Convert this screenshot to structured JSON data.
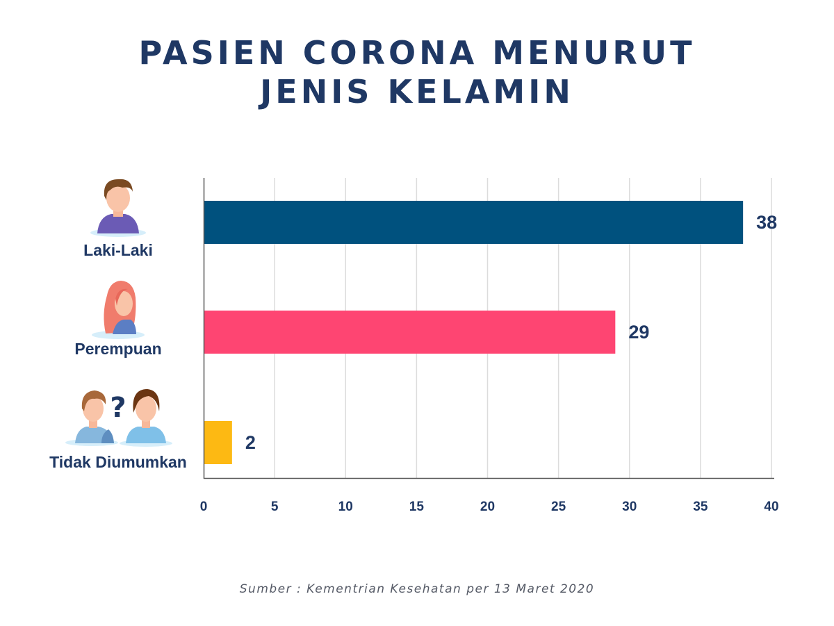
{
  "colors": {
    "title": "#1f3864",
    "laki": "#00517e",
    "perempuan": "#fe4572",
    "tidak": "#fdb913",
    "grid": "#dcdcdc",
    "axis": "#555555"
  },
  "chart_data": {
    "type": "bar",
    "orientation": "horizontal",
    "title": [
      "PASIEN CORONA MENURUT",
      "JENIS KELAMIN"
    ],
    "categories": [
      "Laki-Laki",
      "Perempuan",
      "Tidak Diumumkan"
    ],
    "values": [
      38,
      29,
      2
    ],
    "data_labels": [
      "38",
      "29",
      "2"
    ],
    "bar_colors": [
      "#00517e",
      "#fe4572",
      "#fdb913"
    ],
    "xlim": [
      0,
      40
    ],
    "x_ticks": [
      "0",
      "5",
      "10",
      "15",
      "20",
      "25",
      "30",
      "35",
      "40"
    ],
    "grid": true,
    "source": "Sumber : Kementrian Kesehatan per 13 Maret 2020"
  },
  "icons": [
    "man-avatar-icon",
    "woman-avatar-icon",
    "unknown-gender-icon"
  ]
}
